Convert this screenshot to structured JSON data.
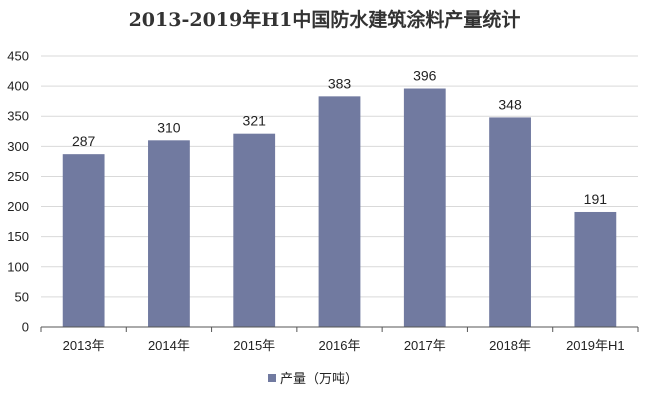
{
  "chart_data": {
    "type": "bar",
    "title": "2013-2019年H1中国防水建筑涂料产量统计",
    "categories": [
      "2013年",
      "2014年",
      "2015年",
      "2016年",
      "2017年",
      "2018年",
      "2019年H1"
    ],
    "series": [
      {
        "name": "产量（万吨）",
        "values": [
          287,
          310,
          321,
          383,
          396,
          348,
          191
        ],
        "color": "#717aa0"
      }
    ],
    "ylim": [
      0,
      450
    ],
    "yticks": [
      0,
      50,
      100,
      150,
      200,
      250,
      300,
      350,
      400,
      450
    ],
    "grid": true,
    "legend_position": "bottom",
    "data_labels": true
  }
}
